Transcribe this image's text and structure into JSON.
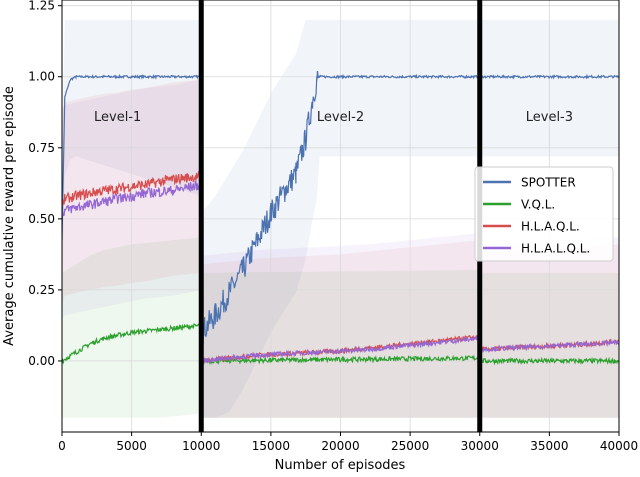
{
  "chart_data": {
    "type": "line",
    "title": "",
    "xlabel": "Number of episodes",
    "ylabel": "Average cumulative reward per episode",
    "xlim": [
      0,
      40000
    ],
    "ylim": [
      -0.25,
      1.27
    ],
    "xticks": [
      0,
      5000,
      10000,
      15000,
      20000,
      25000,
      30000,
      35000,
      40000
    ],
    "xtick_labels": [
      "0",
      "5000",
      "10000",
      "15000",
      "20000",
      "25000",
      "30000",
      "35000",
      "40000"
    ],
    "yticks": [
      0.0,
      0.25,
      0.5,
      0.75,
      1.0,
      1.25
    ],
    "ytick_labels": [
      "0.00",
      "0.25",
      "0.50",
      "0.75",
      "1.00",
      "1.25"
    ],
    "grid": true,
    "legend_position": "center-right",
    "level_dividers": [
      10000,
      30000
    ],
    "level_labels": [
      {
        "text": "Level-1",
        "x": 4000,
        "y": 0.845
      },
      {
        "text": "Level-2",
        "x": 20000,
        "y": 0.845
      },
      {
        "text": "Level-3",
        "x": 35000,
        "y": 0.845
      }
    ],
    "series": [
      {
        "name": "SPOTTER",
        "color": "#4c72b0",
        "points": [
          [
            0,
            0.43
          ],
          [
            200,
            0.93
          ],
          [
            600,
            0.99
          ],
          [
            1000,
            1.0
          ],
          [
            10000,
            1.0
          ],
          [
            10000,
            0.1
          ],
          [
            11000,
            0.16
          ],
          [
            12000,
            0.24
          ],
          [
            13000,
            0.32
          ],
          [
            14000,
            0.42
          ],
          [
            15000,
            0.52
          ],
          [
            16000,
            0.6
          ],
          [
            16800,
            0.66
          ],
          [
            17500,
            0.78
          ],
          [
            18000,
            0.92
          ],
          [
            18300,
            0.99
          ],
          [
            18500,
            1.0
          ],
          [
            30000,
            1.0
          ],
          [
            40000,
            1.0
          ]
        ]
      },
      {
        "name": "V.Q.L.",
        "color": "#2ca02c",
        "points": [
          [
            0,
            0.0
          ],
          [
            1000,
            0.03
          ],
          [
            2000,
            0.06
          ],
          [
            3000,
            0.08
          ],
          [
            4000,
            0.09
          ],
          [
            5000,
            0.1
          ],
          [
            6000,
            0.105
          ],
          [
            7000,
            0.11
          ],
          [
            8000,
            0.115
          ],
          [
            9000,
            0.12
          ],
          [
            10000,
            0.125
          ],
          [
            10000,
            0.0
          ],
          [
            20000,
            0.005
          ],
          [
            30000,
            0.01
          ],
          [
            30000,
            0.0
          ],
          [
            40000,
            0.0
          ]
        ]
      },
      {
        "name": "H.L.A.Q.L.",
        "color": "#d64d4d",
        "points": [
          [
            0,
            0.54
          ],
          [
            200,
            0.57
          ],
          [
            1000,
            0.58
          ],
          [
            2000,
            0.59
          ],
          [
            3000,
            0.6
          ],
          [
            4000,
            0.605
          ],
          [
            5000,
            0.615
          ],
          [
            6000,
            0.62
          ],
          [
            7000,
            0.63
          ],
          [
            8000,
            0.64
          ],
          [
            9000,
            0.645
          ],
          [
            10000,
            0.65
          ],
          [
            10000,
            0.0
          ],
          [
            12000,
            0.01
          ],
          [
            14000,
            0.02
          ],
          [
            16000,
            0.025
          ],
          [
            18000,
            0.03
          ],
          [
            20000,
            0.035
          ],
          [
            22000,
            0.045
          ],
          [
            24000,
            0.055
          ],
          [
            26000,
            0.065
          ],
          [
            28000,
            0.075
          ],
          [
            30000,
            0.085
          ],
          [
            30000,
            0.04
          ],
          [
            32000,
            0.045
          ],
          [
            34000,
            0.05
          ],
          [
            36000,
            0.055
          ],
          [
            38000,
            0.06
          ],
          [
            40000,
            0.07
          ]
        ]
      },
      {
        "name": "H.L.A.L.Q.L.",
        "color": "#9467d4",
        "points": [
          [
            0,
            0.52
          ],
          [
            200,
            0.53
          ],
          [
            1000,
            0.54
          ],
          [
            2000,
            0.55
          ],
          [
            3000,
            0.56
          ],
          [
            4000,
            0.57
          ],
          [
            5000,
            0.58
          ],
          [
            6000,
            0.59
          ],
          [
            7000,
            0.595
          ],
          [
            8000,
            0.6
          ],
          [
            9000,
            0.61
          ],
          [
            10000,
            0.62
          ],
          [
            10000,
            0.0
          ],
          [
            12000,
            0.01
          ],
          [
            14000,
            0.02
          ],
          [
            16000,
            0.025
          ],
          [
            18000,
            0.03
          ],
          [
            20000,
            0.035
          ],
          [
            22000,
            0.04
          ],
          [
            24000,
            0.05
          ],
          [
            26000,
            0.06
          ],
          [
            28000,
            0.07
          ],
          [
            30000,
            0.08
          ],
          [
            30000,
            0.04
          ],
          [
            32000,
            0.045
          ],
          [
            34000,
            0.05
          ],
          [
            36000,
            0.055
          ],
          [
            38000,
            0.06
          ],
          [
            40000,
            0.065
          ]
        ]
      }
    ]
  }
}
